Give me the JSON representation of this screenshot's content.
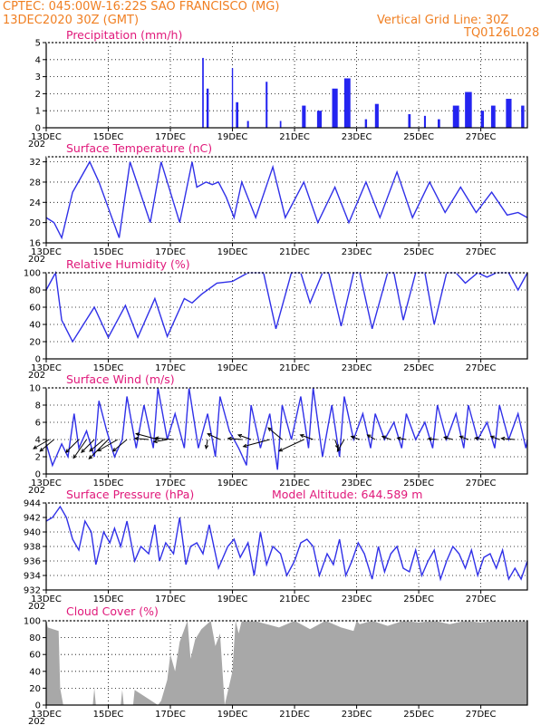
{
  "header": {
    "line1": "CPTEC:   045:00W-16:22S  SAO FRANCISCO (MG)",
    "line2": "13DEC2020 30Z (GMT)",
    "grid_label": "Vertical Grid Line: 30Z",
    "model_id": "TQ0126L028"
  },
  "colors": {
    "header": "#f07f22",
    "title": "#e0187a",
    "line": "#3030e8",
    "bar": "#2424f0",
    "cloud": "#a8a8a8",
    "arrow": "#000000"
  },
  "x_axis": {
    "labels": [
      "13DEC",
      "15DEC",
      "17DEC",
      "19DEC",
      "21DEC",
      "23DEC",
      "25DEC",
      "27DEC"
    ],
    "label_days": [
      0,
      2,
      4,
      6,
      8,
      10,
      12,
      14
    ],
    "start_day": 0,
    "end_day": 15.5,
    "year_stub": "202"
  },
  "chart_data": [
    {
      "id": "precip",
      "type": "bar",
      "title": "Precipitation (mm/h)",
      "ylim": [
        0,
        5
      ],
      "yticks": [
        0,
        1,
        2,
        3,
        4,
        5
      ],
      "events": [
        {
          "day": 5.05,
          "width": 0.05,
          "peak": 4.1
        },
        {
          "day": 5.2,
          "width": 0.07,
          "peak": 2.3
        },
        {
          "day": 6.0,
          "width": 0.04,
          "peak": 3.5
        },
        {
          "day": 6.15,
          "width": 0.08,
          "peak": 1.5
        },
        {
          "day": 6.5,
          "width": 0.06,
          "peak": 0.4
        },
        {
          "day": 7.1,
          "width": 0.06,
          "peak": 2.7
        },
        {
          "day": 7.55,
          "width": 0.05,
          "peak": 0.4
        },
        {
          "day": 8.3,
          "width": 0.12,
          "peak": 1.3
        },
        {
          "day": 8.8,
          "width": 0.15,
          "peak": 1.0
        },
        {
          "day": 9.3,
          "width": 0.18,
          "peak": 2.3
        },
        {
          "day": 9.7,
          "width": 0.2,
          "peak": 2.9
        },
        {
          "day": 10.3,
          "width": 0.07,
          "peak": 0.5
        },
        {
          "day": 10.65,
          "width": 0.12,
          "peak": 1.4
        },
        {
          "day": 11.7,
          "width": 0.08,
          "peak": 0.8
        },
        {
          "day": 12.2,
          "width": 0.06,
          "peak": 0.7
        },
        {
          "day": 12.65,
          "width": 0.08,
          "peak": 0.5
        },
        {
          "day": 13.2,
          "width": 0.2,
          "peak": 1.3
        },
        {
          "day": 13.6,
          "width": 0.22,
          "peak": 2.1
        },
        {
          "day": 14.05,
          "width": 0.1,
          "peak": 1.0
        },
        {
          "day": 14.4,
          "width": 0.14,
          "peak": 1.3
        },
        {
          "day": 14.9,
          "width": 0.18,
          "peak": 1.7
        },
        {
          "day": 15.35,
          "width": 0.1,
          "peak": 1.3
        }
      ]
    },
    {
      "id": "temp",
      "type": "line",
      "title": "Surface Temperature (nC)",
      "ylim": [
        16,
        33
      ],
      "yticks": [
        16,
        20,
        24,
        28,
        32
      ],
      "x": [
        0,
        0.25,
        0.5,
        0.85,
        1.4,
        1.7,
        2.35,
        2.7,
        3.35,
        3.7,
        4.3,
        4.7,
        4.85,
        5.15,
        5.35,
        5.55,
        5.8,
        6.05,
        6.3,
        6.75,
        7.3,
        7.7,
        8.3,
        8.75,
        9.3,
        9.75,
        10.3,
        10.75,
        11.3,
        11.8,
        12.35,
        12.85,
        13.35,
        13.85,
        14.35,
        14.85,
        15.2,
        15.5
      ],
      "y": [
        21,
        20,
        17,
        26,
        32,
        28,
        17,
        32,
        20,
        32,
        20,
        32,
        27,
        28,
        27.5,
        28,
        25,
        21,
        28,
        21,
        31,
        21,
        28,
        20,
        27,
        20,
        28,
        21,
        30,
        21,
        28,
        22,
        27,
        22,
        26,
        21.5,
        22,
        21
      ]
    },
    {
      "id": "rh",
      "type": "line",
      "title": "Relative Humidity (%)",
      "ylim": [
        0,
        100
      ],
      "yticks": [
        0,
        20,
        40,
        60,
        80,
        100
      ],
      "x": [
        0,
        0.3,
        0.5,
        0.85,
        1.55,
        2.0,
        2.55,
        2.95,
        3.5,
        3.9,
        4.45,
        4.7,
        5.0,
        5.5,
        6.0,
        6.25,
        6.5,
        7.0,
        7.4,
        7.9,
        8.2,
        8.5,
        8.9,
        9.1,
        9.5,
        9.9,
        10.1,
        10.5,
        11.0,
        11.2,
        11.5,
        11.9,
        12.2,
        12.5,
        12.9,
        13.2,
        13.5,
        13.9,
        14.2,
        14.5,
        14.9,
        15.2,
        15.5
      ],
      "y": [
        80,
        100,
        45,
        20,
        60,
        25,
        62,
        25,
        70,
        26,
        70,
        65,
        75,
        88,
        90,
        95,
        100,
        100,
        35,
        100,
        100,
        65,
        100,
        100,
        38,
        100,
        100,
        35,
        100,
        100,
        45,
        100,
        100,
        40,
        100,
        100,
        88,
        100,
        95,
        100,
        100,
        80,
        100
      ]
    },
    {
      "id": "wind",
      "type": "line",
      "title": "Surface Wind (m/s)",
      "ylim": [
        0,
        10
      ],
      "yticks": [
        0,
        2,
        4,
        6,
        8,
        10
      ],
      "x": [
        0,
        0.2,
        0.5,
        0.7,
        0.9,
        1.05,
        1.3,
        1.55,
        1.7,
        1.95,
        2.2,
        2.45,
        2.6,
        2.9,
        3.15,
        3.45,
        3.6,
        3.9,
        4.15,
        4.45,
        4.6,
        4.9,
        5.2,
        5.45,
        5.6,
        5.9,
        6.2,
        6.45,
        6.6,
        6.9,
        7.2,
        7.45,
        7.6,
        7.9,
        8.2,
        8.45,
        8.6,
        8.9,
        9.2,
        9.45,
        9.6,
        9.9,
        10.2,
        10.45,
        10.6,
        10.9,
        11.2,
        11.45,
        11.6,
        11.9,
        12.2,
        12.45,
        12.6,
        12.9,
        13.2,
        13.45,
        13.6,
        13.9,
        14.2,
        14.45,
        14.6,
        14.9,
        15.2,
        15.45,
        15.5
      ],
      "y": [
        3.5,
        1,
        3.5,
        2,
        7,
        3,
        5,
        2,
        8.5,
        5,
        2,
        4,
        9,
        3,
        8,
        3,
        10,
        4,
        7,
        3,
        10,
        3,
        7,
        2,
        9,
        5,
        3,
        1,
        8,
        3,
        7,
        0.5,
        8,
        4,
        9,
        3,
        10,
        2,
        8,
        2,
        9,
        4,
        7,
        3,
        7,
        4,
        6,
        3,
        7,
        4,
        6,
        3,
        8,
        4,
        7,
        3,
        8,
        4,
        6,
        3,
        8,
        4,
        7,
        3,
        4
      ]
    },
    {
      "id": "pres",
      "type": "line",
      "title": "Surface Pressure (hPa)",
      "subtitle": "Model Altitude: 644.589 m",
      "ylim": [
        932,
        944
      ],
      "yticks": [
        932,
        934,
        936,
        938,
        940,
        942,
        944
      ],
      "x": [
        0,
        0.2,
        0.45,
        0.65,
        0.85,
        1.05,
        1.25,
        1.45,
        1.6,
        1.85,
        2.05,
        2.2,
        2.4,
        2.6,
        2.85,
        3.05,
        3.3,
        3.5,
        3.65,
        3.85,
        4.1,
        4.3,
        4.5,
        4.65,
        4.85,
        5.05,
        5.25,
        5.55,
        5.85,
        6.05,
        6.25,
        6.5,
        6.7,
        6.9,
        7.1,
        7.3,
        7.55,
        7.75,
        8.0,
        8.2,
        8.4,
        8.6,
        8.8,
        9.05,
        9.25,
        9.45,
        9.65,
        9.85,
        10.05,
        10.25,
        10.5,
        10.7,
        10.9,
        11.1,
        11.3,
        11.5,
        11.7,
        11.9,
        12.1,
        12.3,
        12.5,
        12.7,
        12.9,
        13.1,
        13.3,
        13.5,
        13.7,
        13.9,
        14.1,
        14.3,
        14.5,
        14.7,
        14.9,
        15.1,
        15.3,
        15.5
      ],
      "y": [
        941.5,
        942,
        943.5,
        942,
        939,
        937.5,
        941.5,
        940,
        935.5,
        940,
        938.5,
        940.5,
        938,
        941.5,
        936,
        938,
        937,
        941,
        936,
        938.5,
        937,
        942,
        935.5,
        938,
        938.5,
        937,
        941,
        935,
        938,
        939,
        936.5,
        938.5,
        934,
        940,
        935.5,
        938,
        937,
        934,
        936,
        938.5,
        939,
        938,
        934,
        937,
        935.5,
        939,
        934,
        936,
        938.5,
        937,
        933.5,
        938,
        934.5,
        937,
        938,
        935,
        934.5,
        937.5,
        934,
        936,
        937.5,
        933.5,
        936,
        938,
        937,
        935,
        937.5,
        934,
        936.5,
        937,
        935,
        937.5,
        933.5,
        935,
        933.5,
        936
      ]
    },
    {
      "id": "cloud",
      "type": "area",
      "title": "Cloud Cover (%)",
      "ylim": [
        0,
        100
      ],
      "yticks": [
        0,
        20,
        40,
        60,
        80,
        100
      ],
      "x": [
        0,
        0.05,
        0.4,
        0.45,
        0.55,
        0.6,
        1.5,
        1.55,
        1.6,
        1.65,
        2.4,
        2.45,
        2.5,
        2.55,
        2.8,
        2.85,
        3.6,
        3.7,
        3.9,
        4.0,
        4.15,
        4.3,
        4.55,
        4.65,
        4.8,
        5.0,
        5.3,
        5.45,
        5.6,
        5.75,
        6.0,
        6.1,
        6.2,
        6.3,
        6.7,
        7.5,
        8.0,
        8.5,
        9.0,
        9.5,
        9.9,
        10.0,
        10.1,
        10.5,
        11.0,
        11.5,
        12.0,
        12.5,
        13.0,
        13.5,
        14.0,
        14.5,
        15.0,
        15.5
      ],
      "y": [
        100,
        92,
        88,
        20,
        0,
        0,
        0,
        20,
        0,
        0,
        0,
        18,
        0,
        0,
        0,
        18,
        0,
        5,
        30,
        60,
        40,
        75,
        100,
        55,
        78,
        90,
        100,
        70,
        85,
        0,
        40,
        100,
        85,
        100,
        100,
        92,
        100,
        90,
        100,
        92,
        88,
        100,
        96,
        100,
        94,
        100,
        98,
        100,
        96,
        100,
        98,
        100,
        100,
        100
      ]
    }
  ],
  "wind_vectors": {
    "day": [
      0.1,
      0.25,
      1.05,
      1.3,
      1.55,
      1.85,
      2.0,
      2.3,
      2.6,
      3.3,
      3.6,
      3.9,
      4.1,
      5.2,
      5.6,
      6.3,
      6.6,
      7.2,
      7.6,
      8.3,
      8.6,
      9.3,
      9.6,
      10.1,
      10.6,
      11.1,
      11.6,
      12.6,
      13.1,
      13.6,
      14.1,
      14.6,
      15.1
    ],
    "angle_deg": [
      30,
      40,
      45,
      55,
      45,
      40,
      45,
      30,
      40,
      355,
      -15,
      10,
      -5,
      80,
      -25,
      -5,
      -20,
      15,
      -40,
      25,
      -20,
      110,
      60,
      -20,
      -30,
      -20,
      -10,
      -5,
      -15,
      -20,
      -10,
      -20,
      -5
    ],
    "length_mps": [
      4,
      4,
      4,
      5,
      4,
      4,
      6,
      5,
      4,
      3,
      5,
      3,
      4,
      2,
      3,
      3,
      3,
      6,
      4,
      6,
      3,
      2,
      3,
      2,
      2,
      2,
      2,
      2,
      2,
      2,
      2,
      2,
      3
    ]
  }
}
